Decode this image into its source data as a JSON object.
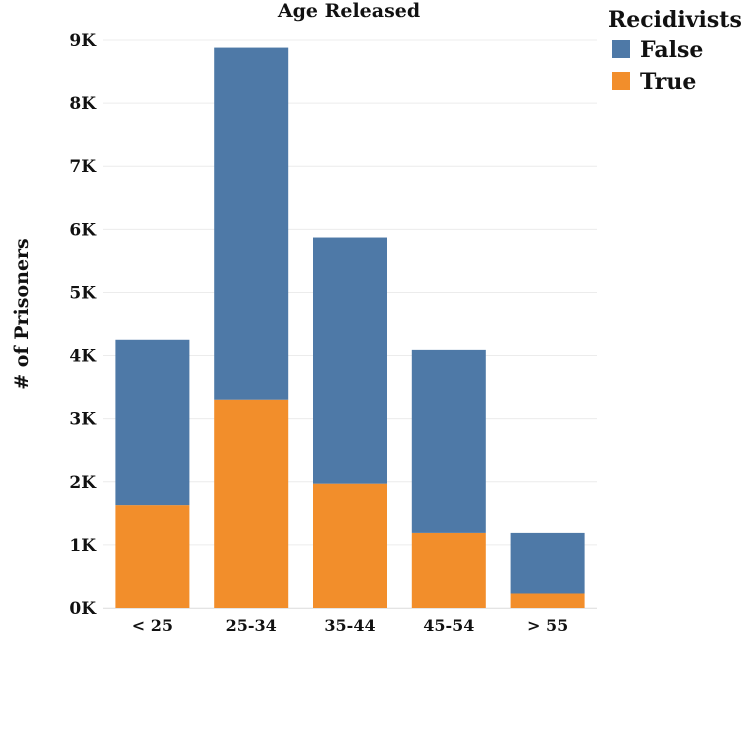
{
  "chart_data": {
    "type": "bar",
    "stacked": true,
    "title": "Age Released",
    "xlabel": "",
    "ylabel": "# of Prisoners",
    "categories": [
      "< 25",
      "25-34",
      "35-44",
      "45-54",
      "> 55"
    ],
    "series": [
      {
        "name": "True",
        "color": "#f28e2b",
        "values": [
          1630,
          3300,
          1970,
          1190,
          230
        ]
      },
      {
        "name": "False",
        "color": "#4e79a7",
        "values": [
          2620,
          5580,
          3900,
          2900,
          960
        ]
      }
    ],
    "ylim": [
      0,
      9000
    ],
    "yticks": [
      0,
      1000,
      2000,
      3000,
      4000,
      5000,
      6000,
      7000,
      8000,
      9000
    ],
    "ytick_labels": [
      "0K",
      "1K",
      "2K",
      "3K",
      "4K",
      "5K",
      "6K",
      "7K",
      "8K",
      "9K"
    ],
    "grid": true,
    "legend": {
      "title": "Recidivists",
      "position": "top-right",
      "entries": [
        "False",
        "True"
      ]
    }
  }
}
